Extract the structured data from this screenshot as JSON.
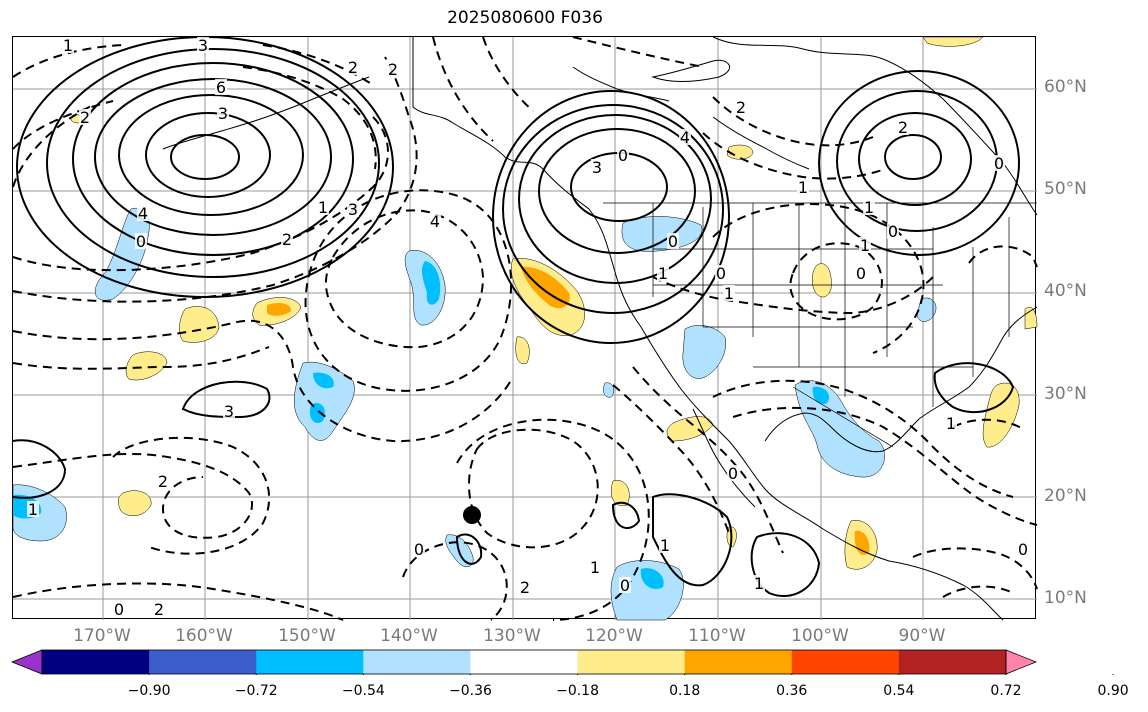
{
  "title": "2025080600 F036",
  "map": {
    "lon_labels": [
      "170°W",
      "160°W",
      "150°W",
      "140°W",
      "130°W",
      "120°W",
      "110°W",
      "100°W",
      "90°W"
    ],
    "lat_labels": [
      "60°N",
      "50°N",
      "40°N",
      "30°N",
      "20°N",
      "10°N"
    ],
    "contour_labels": [
      "1",
      "3",
      "2",
      "6",
      "3",
      "2",
      "2",
      "4",
      "0",
      "2",
      "3",
      "1",
      "4",
      "3",
      "0",
      "4",
      "2",
      "1",
      "0",
      "1",
      "1",
      "0",
      "1",
      "0",
      "2",
      "0",
      "1",
      "3",
      "2",
      "0",
      "2",
      "1",
      "0",
      "2",
      "1",
      "0",
      "1",
      "0",
      "1",
      "0",
      "1",
      "0"
    ]
  },
  "colorbar": {
    "tick_labels": [
      "−0.90",
      "−0.72",
      "−0.54",
      "−0.36",
      "−0.18",
      "0.18",
      "0.36",
      "0.54",
      "0.72",
      "0.90"
    ],
    "colors": [
      "#9a32cd",
      "#000080",
      "#3a5fcd",
      "#00bfff",
      "#b0e2ff",
      "#ffffff",
      "#ffec8b",
      "#ffa500",
      "#ff4500",
      "#b22222",
      "#ff83aa"
    ]
  }
}
